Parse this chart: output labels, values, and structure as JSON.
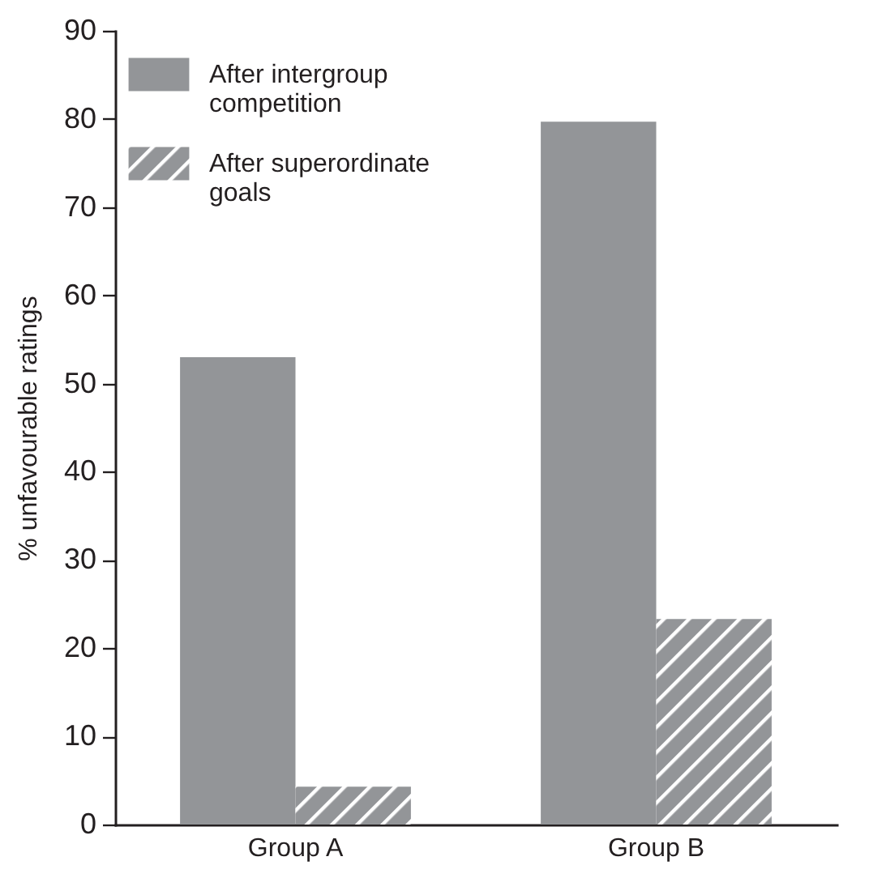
{
  "chart_data": {
    "type": "bar",
    "ylabel": "% unfavourable ratings",
    "categories": [
      "Group A",
      "Group B"
    ],
    "series": [
      {
        "name": "After intergroup competition",
        "color": "#939598",
        "values": [
          53,
          79.7
        ]
      },
      {
        "name": "After superordinate goals",
        "color": "#939598",
        "values": [
          4.3,
          23.3
        ]
      }
    ],
    "ylim": [
      0,
      90
    ],
    "yticks": [
      0,
      10,
      20,
      30,
      40,
      50,
      60,
      70,
      80,
      90
    ],
    "grid": false,
    "legend": "top left"
  }
}
